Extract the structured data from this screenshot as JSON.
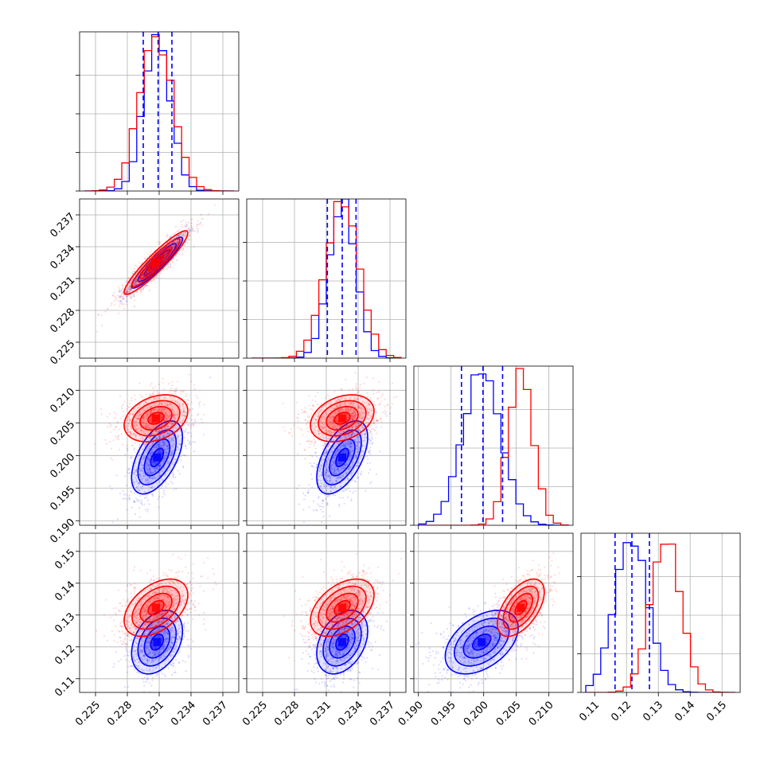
{
  "chart_data": {
    "type": "corner",
    "grid": true,
    "colors": {
      "red": "#ff0000",
      "blue": "#0000ff"
    },
    "params": [
      {
        "lim": [
          0.2235,
          0.2385
        ],
        "ticks": [
          0.225,
          0.228,
          0.231,
          0.234,
          0.237
        ],
        "tick_labels": [
          "0.225",
          "0.228",
          "0.231",
          "0.234",
          "0.237"
        ]
      },
      {
        "lim": [
          0.2235,
          0.2385
        ],
        "ticks": [
          0.225,
          0.228,
          0.231,
          0.234,
          0.237
        ],
        "tick_labels": [
          "0.225",
          "0.228",
          "0.231",
          "0.234",
          "0.237"
        ]
      },
      {
        "lim": [
          0.1893,
          0.2137
        ],
        "ticks": [
          0.19,
          0.195,
          0.2,
          0.205,
          0.21
        ],
        "tick_labels": [
          "0.190",
          "0.195",
          "0.200",
          "0.205",
          "0.210"
        ]
      },
      {
        "lim": [
          0.1057,
          0.1557
        ],
        "ticks": [
          0.11,
          0.12,
          0.13,
          0.14,
          0.15
        ],
        "tick_labels": [
          "0.11",
          "0.12",
          "0.13",
          "0.14",
          "0.15"
        ]
      }
    ],
    "series": [
      {
        "color": "blue",
        "mean": [
          0.2308,
          0.2325,
          0.1997,
          0.1215
        ],
        "std": [
          0.0012,
          0.0012,
          0.0028,
          0.005
        ]
      },
      {
        "color": "red",
        "mean": [
          0.2307,
          0.2325,
          0.2057,
          0.1323
        ],
        "std": [
          0.0015,
          0.0015,
          0.0018,
          0.0045
        ]
      }
    ],
    "quantile_lines": {
      "color": "blue",
      "values": [
        [
          0.2295,
          0.2309,
          0.2322
        ],
        [
          0.2311,
          0.2325,
          0.2338
        ],
        [
          0.1966,
          0.1999,
          0.2029
        ],
        [
          0.1164,
          0.1217,
          0.1272
        ]
      ]
    },
    "correlations": {
      "blue": {
        "0-1": 0.93,
        "0-2": 0.55,
        "1-2": 0.55,
        "0-3": 0.35,
        "1-3": 0.35,
        "2-3": 0.45
      },
      "red": {
        "0-1": 0.93,
        "0-2": 0.3,
        "1-2": 0.3,
        "0-3": 0.45,
        "1-3": 0.45,
        "2-3": 0.55
      }
    },
    "contour_levels_sigma": [
      0.5,
      1.0,
      1.5,
      2.0
    ]
  }
}
